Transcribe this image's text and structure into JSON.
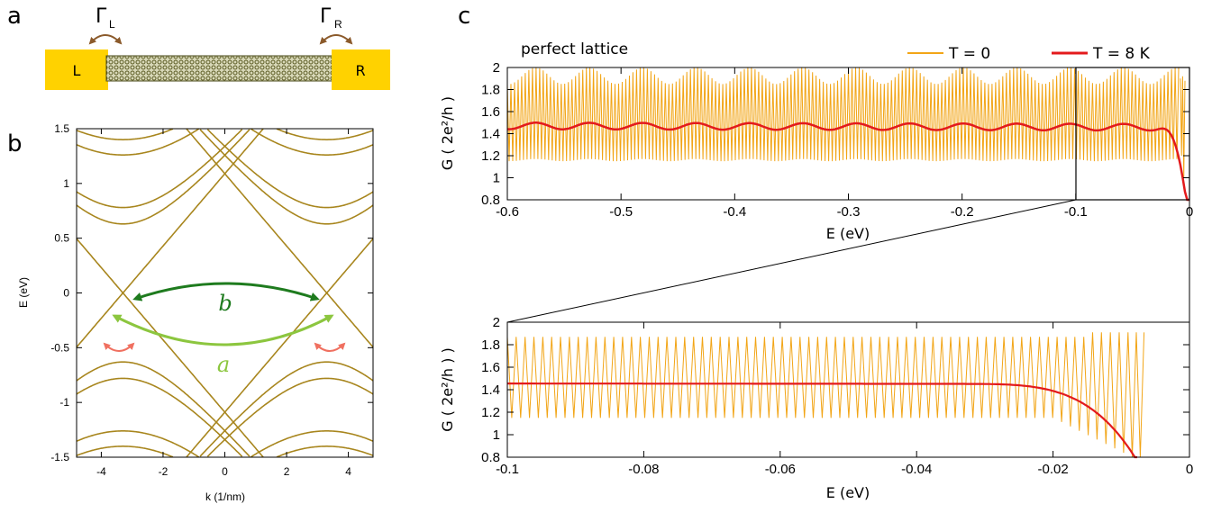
{
  "panels": {
    "a": "a",
    "b": "b",
    "c": "c"
  },
  "panel_a": {
    "left_lead": "L",
    "right_lead": "R",
    "gamma_left": "Γ",
    "gamma_left_sub": "L",
    "gamma_right": "Γ",
    "gamma_right_sub": "R",
    "lead_color": "#FFD200",
    "tube_color": "#6B6B2A",
    "arrow_color": "#8B5A2B"
  },
  "chart_data": [
    {
      "id": "band-structure",
      "type": "line",
      "xlabel": "k (1/nm)",
      "ylabel": "E (eV)",
      "xlim": [
        -4.8,
        4.8
      ],
      "ylim": [
        -1.5,
        1.5
      ],
      "xticks": [
        "-4",
        "-2",
        "0",
        "2",
        "4"
      ],
      "yticks": [
        "1.5",
        "1",
        "0.5",
        "0",
        "-0.5",
        "-1",
        "-1.5"
      ],
      "line_color": "#A8861E",
      "dirac_points_k": [
        -3.3,
        3.3
      ],
      "fermi_velocity_eV_nm": 0.33,
      "subband_gaps_eV": [
        0.63,
        0.78,
        1.26,
        1.4
      ],
      "annotations": [
        {
          "label": "b",
          "color": "#1E7B1E",
          "from_k": -3.3,
          "to_k": 3.3,
          "E": 0.0
        },
        {
          "label": "a",
          "color": "#8CC63F",
          "from_k": -3.55,
          "to_k": 3.55,
          "E": -0.22
        },
        {
          "label": "",
          "color": "#F07060",
          "near_k": [
            -3.3,
            3.3
          ],
          "E": -0.45
        }
      ]
    },
    {
      "id": "conductance-perfect",
      "type": "line",
      "title": "perfect lattice",
      "xlabel": "E (eV)",
      "ylabel": "G ( 2e²/h )",
      "xlim": [
        -0.6,
        0
      ],
      "ylim": [
        0.8,
        2.0
      ],
      "xticks": [
        "-0.6",
        "-0.5",
        "-0.4",
        "-0.3",
        "-0.2",
        "-0.1",
        "0"
      ],
      "yticks": [
        "2",
        "1.8",
        "1.6",
        "1.4",
        "1.2",
        "1",
        "0.8"
      ],
      "series": [
        {
          "name": "T = 0",
          "color": "#F2A516",
          "envelope_high": [
            1.85,
            2.0
          ],
          "envelope_low": [
            1.15,
            1.18
          ],
          "beat_period_eV": 0.047
        },
        {
          "name": "T = 8 K",
          "color": "#E31A1C",
          "mean": 1.47,
          "ripple": 0.03,
          "drops_to_0_8_at_eV": -0.003
        }
      ],
      "zoom_box_xlim": [
        -0.1,
        0
      ],
      "legend_position": "top-right"
    },
    {
      "id": "conductance-zoom",
      "type": "line",
      "xlabel": "E (eV)",
      "ylabel": "G ( 2e²/h ) )",
      "xlim": [
        -0.1,
        0
      ],
      "ylim": [
        0.8,
        2.0
      ],
      "xticks": [
        "-0.1",
        "-0.08",
        "-0.06",
        "-0.04",
        "-0.02",
        "0"
      ],
      "yticks": [
        "2",
        "1.8",
        "1.6",
        "1.4",
        "1.2",
        "1",
        "0.8"
      ],
      "series": [
        {
          "name": "T = 0",
          "color": "#F2A516",
          "oscillation_period_eV": 0.0013,
          "high": 1.87,
          "low": 1.15,
          "ends_at_eV": -0.0065
        },
        {
          "name": "T = 8 K",
          "color": "#E31A1C",
          "mean": 1.455,
          "drops_to_0_8_at_eV": -0.008
        }
      ]
    }
  ]
}
